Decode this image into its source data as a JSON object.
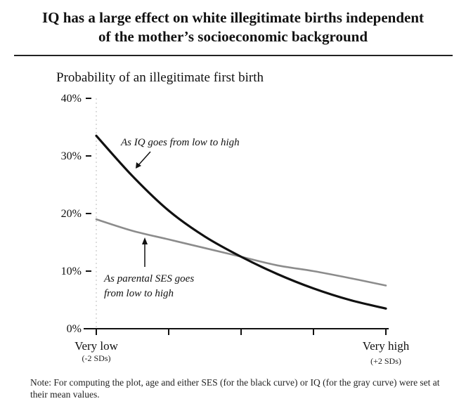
{
  "figure": {
    "title_line1": "IQ has a large effect on white illegitimate births independent",
    "title_line2": "of the mother’s socioeconomic background",
    "note": "Note: For computing the plot, age and either SES (for the black curve) or IQ (for the gray curve) were set at their mean values."
  },
  "chart_data": {
    "type": "line",
    "title": "",
    "ylabel": "Probability of an illegitimate first birth",
    "xlabel": "",
    "x": [
      -2,
      -1.5,
      -1,
      -0.5,
      0,
      0.5,
      1,
      1.5,
      2
    ],
    "xlim": [
      -2,
      2
    ],
    "ylim": [
      0,
      40
    ],
    "y_ticks": [
      0,
      10,
      20,
      30,
      40
    ],
    "y_tick_labels": [
      "0%",
      "10%",
      "20%",
      "30%",
      "40%"
    ],
    "x_tick_positions": [
      -2,
      -1,
      0,
      1,
      2
    ],
    "x_end_labels": {
      "left": "Very low",
      "left_sub": "(-2 SDs)",
      "right": "Very high",
      "right_sub": "(+2 SDs)"
    },
    "grid": false,
    "series": [
      {
        "key": "iq",
        "color": "#111111",
        "values": [
          33.5,
          26.5,
          20.5,
          16.0,
          12.5,
          9.5,
          7.0,
          5.0,
          3.5
        ]
      },
      {
        "key": "ses",
        "color": "#8c8c8c",
        "values": [
          19.0,
          17.0,
          15.5,
          14.0,
          12.5,
          11.0,
          10.0,
          8.8,
          7.5
        ]
      }
    ],
    "annotations": [
      {
        "key": "iq",
        "text": "As IQ goes from low to high"
      },
      {
        "key": "ses",
        "line1": "As parental SES goes",
        "line2": "from low to high"
      }
    ]
  }
}
